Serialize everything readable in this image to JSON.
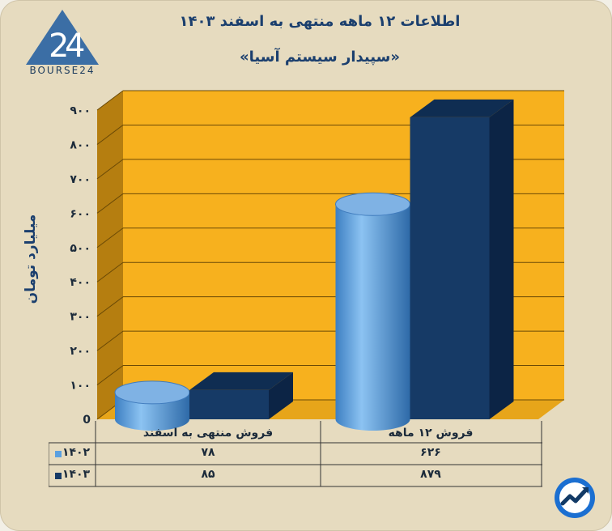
{
  "header": {
    "title": "اطلاعات ۱۲ ماهه منتهی به اسفند ۱۴۰۳",
    "subtitle": "«سپیدار سیستم آسیا»",
    "logo_text": "BOURSE24"
  },
  "colors": {
    "series_1402": "#5aa0e0",
    "series_1403": "#163a66",
    "plot_background": "#f7b11e",
    "plot_wall_side": "#b57e10",
    "text": "#1b3f6e"
  },
  "chart_data": {
    "type": "bar",
    "ylabel": "میلیارد تومان",
    "ylim": [
      0,
      900
    ],
    "yticks": [
      0,
      100,
      200,
      300,
      400,
      500,
      600,
      700,
      800,
      900
    ],
    "ytick_labels": [
      "0",
      "۱۰۰",
      "۲۰۰",
      "۳۰۰",
      "۴۰۰",
      "۵۰۰",
      "۶۰۰",
      "۷۰۰",
      "۸۰۰",
      "۹۰۰"
    ],
    "categories": [
      "فروش منتهی به  اسفند",
      "فروش ۱۲  ماهه"
    ],
    "series": [
      {
        "name": "۱۴۰۲",
        "values": [
          78,
          626
        ],
        "value_labels": [
          "۷۸",
          "۶۲۶"
        ],
        "shape": "cylinder"
      },
      {
        "name": "۱۴۰۳",
        "values": [
          85,
          879
        ],
        "value_labels": [
          "۸۵",
          "۸۷۹"
        ],
        "shape": "box"
      }
    ],
    "legend": "in-table-left",
    "grid": true
  },
  "brand_icon": "trend-arrow-icon"
}
